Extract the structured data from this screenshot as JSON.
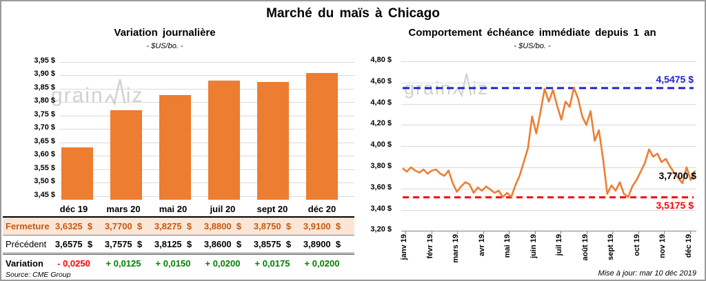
{
  "header": {
    "title": "Marché du maïs à Chicago"
  },
  "watermark": {
    "part1": "grain",
    "part2": "iz"
  },
  "colors": {
    "orange": "#ED7D31",
    "fermeture_text": "#C55A11",
    "fermeture_bg": "#FBE5D6",
    "resistance_blue": "#2222CC",
    "support_red": "#FF0000",
    "negative_red": "#FF0000",
    "positive_green": "#008000",
    "gridline": "#D9D9D9",
    "watermark_gray": "#C6C6C6"
  },
  "chart_data": [
    {
      "type": "bar",
      "title": "Variation journalière",
      "subtitle": "- $US/bo. -",
      "categories": [
        "déc 19",
        "mars 20",
        "mai 20",
        "juil 20",
        "sept 20",
        "déc 20"
      ],
      "values": [
        3.6325,
        3.77,
        3.8275,
        3.88,
        3.875,
        3.91
      ],
      "ylabel": "$US/bo.",
      "ylim": [
        3.437,
        3.955
      ],
      "grid": true,
      "y_ticks": [
        {
          "v": 3.45,
          "label": "3,45 $"
        },
        {
          "v": 3.5,
          "label": "3,50 $"
        },
        {
          "v": 3.55,
          "label": "3,55 $"
        },
        {
          "v": 3.6,
          "label": "3,60 $"
        },
        {
          "v": 3.65,
          "label": "3,65 $"
        },
        {
          "v": 3.7,
          "label": "3,70 $"
        },
        {
          "v": 3.75,
          "label": "3,75 $"
        },
        {
          "v": 3.8,
          "label": "3,80 $"
        },
        {
          "v": 3.85,
          "label": "3,85 $"
        },
        {
          "v": 3.9,
          "label": "3,90 $"
        },
        {
          "v": 3.95,
          "label": "3,95 $"
        }
      ]
    },
    {
      "type": "line",
      "title": "Comportement échéance immédiate depuis 1 an",
      "subtitle": "- $US/bo. -",
      "ylabel": "$US/bo.",
      "ylim": [
        3.2,
        4.8
      ],
      "grid": true,
      "x_labels": [
        "janv 19",
        "févr 19",
        "mars 19",
        "avr 19",
        "mai 19",
        "juin 19",
        "juil 19",
        "août 19",
        "sept 19",
        "oct 19",
        "nov 19",
        "déc 19"
      ],
      "y_ticks": [
        {
          "v": 3.2,
          "label": "3,20 $"
        },
        {
          "v": 3.4,
          "label": "3,40 $"
        },
        {
          "v": 3.6,
          "label": "3,60 $"
        },
        {
          "v": 3.8,
          "label": "3,80 $"
        },
        {
          "v": 4.0,
          "label": "4,00 $"
        },
        {
          "v": 4.2,
          "label": "4,20 $"
        },
        {
          "v": 4.4,
          "label": "4,40 $"
        },
        {
          "v": 4.6,
          "label": "4,60 $"
        },
        {
          "v": 4.8,
          "label": "4,80 $"
        }
      ],
      "values": [
        3.79,
        3.76,
        3.8,
        3.77,
        3.75,
        3.78,
        3.74,
        3.77,
        3.78,
        3.74,
        3.72,
        3.77,
        3.65,
        3.57,
        3.62,
        3.66,
        3.64,
        3.56,
        3.61,
        3.58,
        3.62,
        3.59,
        3.56,
        3.58,
        3.52,
        3.56,
        3.52,
        3.63,
        3.72,
        3.85,
        3.98,
        4.28,
        4.12,
        4.32,
        4.54,
        4.42,
        4.53,
        4.38,
        4.25,
        4.42,
        4.37,
        4.55,
        4.45,
        4.28,
        4.2,
        4.33,
        4.05,
        4.15,
        3.88,
        3.55,
        3.63,
        3.58,
        3.66,
        3.55,
        3.52,
        3.62,
        3.68,
        3.76,
        3.84,
        3.97,
        3.9,
        3.93,
        3.85,
        3.88,
        3.81,
        3.75,
        3.7,
        3.65,
        3.8,
        3.68,
        3.77
      ],
      "annotations": {
        "resistance": {
          "value": 4.5475,
          "label": "4,5475 $"
        },
        "support": {
          "value": 3.5175,
          "label": "3,5175 $"
        },
        "last": {
          "value": 3.77,
          "label": "3,7700 $"
        }
      }
    }
  ],
  "table": {
    "rows": [
      {
        "key": "fermeture",
        "label": "Fermeture",
        "values": [
          "3,6325  $",
          "3,7700  $",
          "3,8275  $",
          "3,8800  $",
          "3,8750  $",
          "3,9100  $"
        ]
      },
      {
        "key": "precedent",
        "label": "Précédent",
        "values": [
          "3,6575  $",
          "3,7575  $",
          "3,8125  $",
          "3,8600  $",
          "3,8575  $",
          "3,8900  $"
        ]
      },
      {
        "key": "variation",
        "label": "Variation",
        "values": [
          "- 0,0250",
          "+ 0,0125",
          "+ 0,0150",
          "+ 0,0200",
          "+ 0,0175",
          "+ 0,0200"
        ]
      }
    ]
  },
  "footer": {
    "source": "Source: CME Group",
    "updated": "Mise à jour: mar 10 déc 2019"
  }
}
